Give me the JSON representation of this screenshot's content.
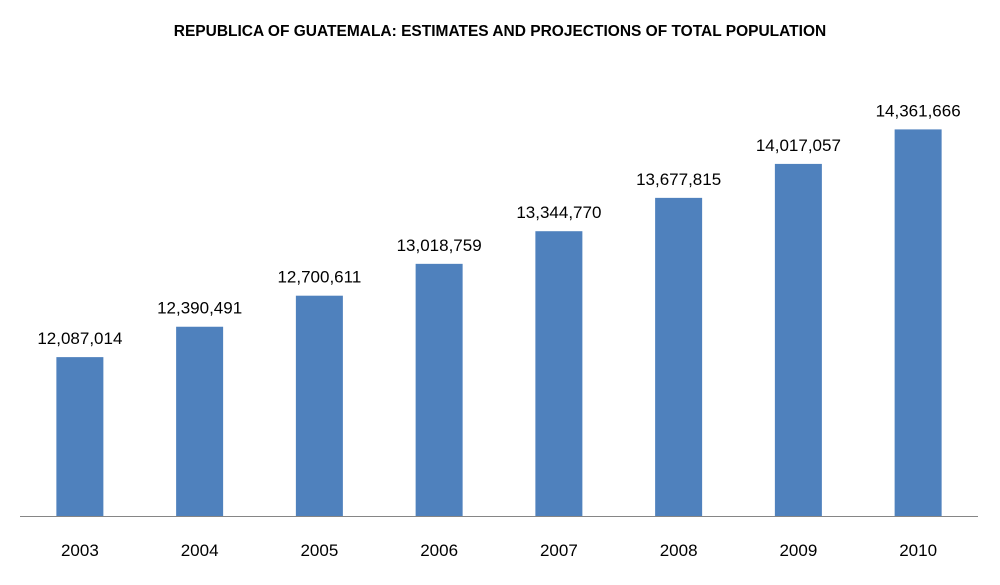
{
  "chart_data": {
    "type": "bar",
    "title": "REPUBLICA OF GUATEMALA: ESTIMATES AND PROJECTIONS OF TOTAL POPULATION",
    "xlabel": "",
    "ylabel": "",
    "categories": [
      "2003",
      "2004",
      "2005",
      "2006",
      "2007",
      "2008",
      "2009",
      "2010"
    ],
    "values": [
      12087014,
      12390491,
      12700611,
      13018759,
      13344770,
      13677815,
      14017057,
      14361666
    ],
    "data_labels": [
      "12,087,014",
      "12,390,491",
      "12,700,611",
      "13,018,759",
      "13,344,770",
      "13,677,815",
      "14,017,057",
      "14,361,666"
    ],
    "ylim": [
      10500000,
      15000000
    ],
    "y_axis_visible": false,
    "grid": false,
    "legend": "none",
    "bar_color": "#4F81BD",
    "axis_color": "#868686"
  }
}
